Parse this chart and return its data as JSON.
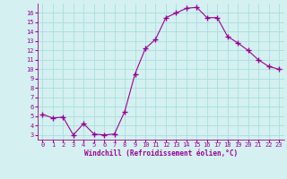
{
  "x": [
    0,
    1,
    2,
    3,
    4,
    5,
    6,
    7,
    8,
    9,
    10,
    11,
    12,
    13,
    14,
    15,
    16,
    17,
    18,
    19,
    20,
    21,
    22,
    23
  ],
  "y": [
    5.2,
    4.8,
    4.9,
    3.0,
    4.2,
    3.1,
    3.0,
    3.1,
    5.5,
    9.5,
    12.2,
    13.2,
    15.5,
    16.0,
    16.5,
    16.6,
    15.5,
    15.5,
    13.5,
    12.8,
    12.0,
    11.0,
    10.3,
    10.0
  ],
  "xlabel": "Windchill (Refroidissement éolien,°C)",
  "xlim": [
    -0.5,
    23.5
  ],
  "ylim": [
    2.5,
    17.0
  ],
  "yticks": [
    3,
    4,
    5,
    6,
    7,
    8,
    9,
    10,
    11,
    12,
    13,
    14,
    15,
    16
  ],
  "xticks": [
    0,
    1,
    2,
    3,
    4,
    5,
    6,
    7,
    8,
    9,
    10,
    11,
    12,
    13,
    14,
    15,
    16,
    17,
    18,
    19,
    20,
    21,
    22,
    23
  ],
  "line_color": "#990099",
  "marker": "+",
  "marker_size": 4,
  "bg_color": "#d4f0f0",
  "grid_color": "#aadddd",
  "tick_color": "#990099",
  "xlabel_color": "#990099",
  "tick_fontsize": 5,
  "xlabel_fontsize": 5.5
}
